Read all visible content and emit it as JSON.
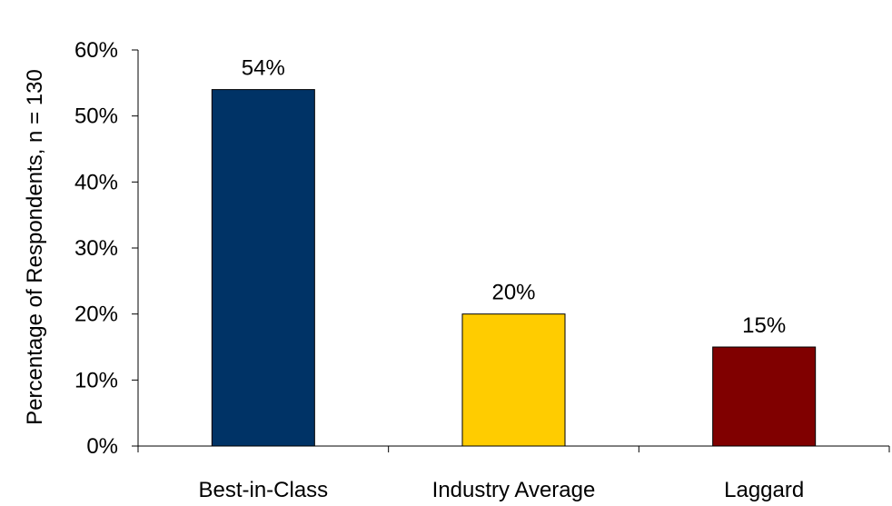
{
  "chart_data": {
    "type": "bar",
    "categories": [
      "Best-in-Class",
      "Industry Average",
      "Laggard"
    ],
    "values": [
      54,
      20,
      15
    ],
    "value_labels": [
      "54%",
      "20%",
      "15%"
    ],
    "colors": [
      "#003366",
      "#FFCC00",
      "#800000"
    ],
    "ylabel": "Percentage of Respondents, n = 130",
    "ylim": [
      0,
      60
    ],
    "yticks": [
      0,
      10,
      20,
      30,
      40,
      50,
      60
    ],
    "ytick_labels": [
      "0%",
      "10%",
      "20%",
      "30%",
      "40%",
      "50%",
      "60%"
    ],
    "grid": false,
    "legend": "none"
  }
}
